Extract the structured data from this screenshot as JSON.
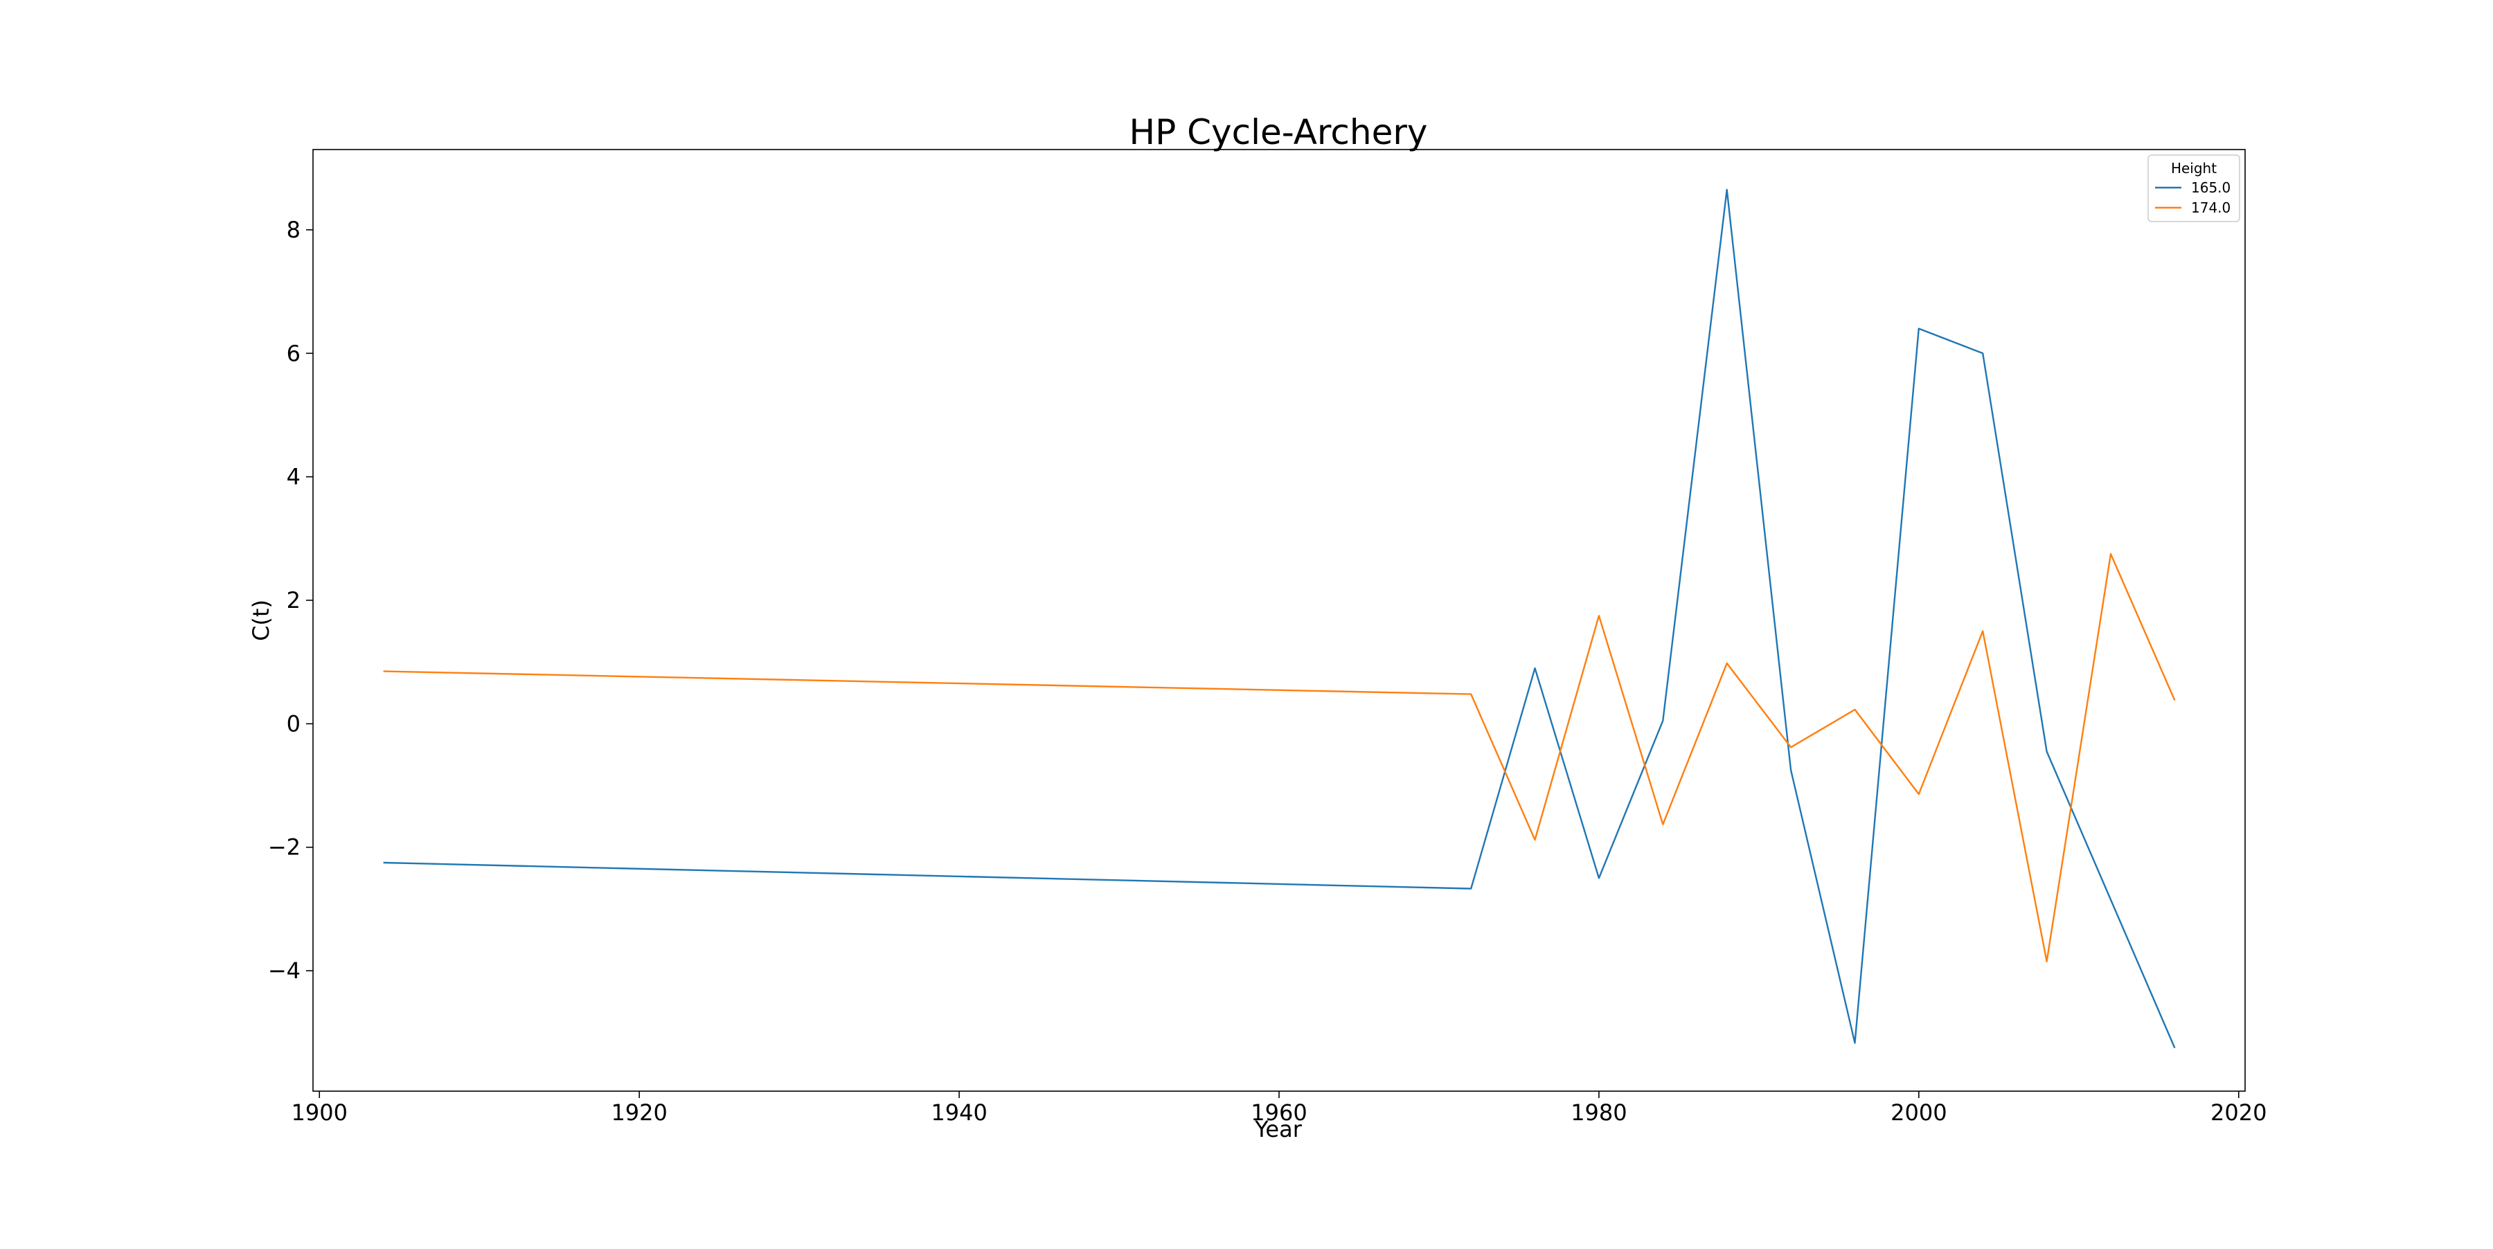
{
  "chart_data": {
    "type": "line",
    "title": "HP Cycle-Archery",
    "xlabel": "Year",
    "ylabel": "C(t)",
    "xlim": [
      1899.6,
      2020.4
    ],
    "ylim": [
      -5.95,
      9.3
    ],
    "xticks": [
      1900,
      1920,
      1940,
      1960,
      1980,
      2000,
      2020
    ],
    "yticks": [
      -4,
      -2,
      0,
      2,
      4,
      6,
      8
    ],
    "ytick_labels": [
      "−4",
      "−2",
      "0",
      "2",
      "4",
      "6",
      "8"
    ],
    "grid": false,
    "legend": {
      "title": "Height",
      "position": "top-right"
    },
    "series": [
      {
        "name": "165.0",
        "color": "#1f77b4",
        "x": [
          1904,
          1972,
          1976,
          1980,
          1984,
          1988,
          1992,
          1996,
          2000,
          2004,
          2008,
          2012,
          2016
        ],
        "y": [
          -2.25,
          -2.67,
          0.9,
          -2.5,
          0.05,
          8.65,
          -0.75,
          -5.17,
          6.4,
          6.0,
          -0.45,
          -2.85,
          -5.25
        ]
      },
      {
        "name": "174.0",
        "color": "#ff7f0e",
        "x": [
          1904,
          1972,
          1976,
          1980,
          1984,
          1988,
          1992,
          1996,
          2000,
          2004,
          2008,
          2012,
          2016
        ],
        "y": [
          0.85,
          0.48,
          -1.88,
          1.75,
          -1.63,
          0.98,
          -0.38,
          0.23,
          -1.14,
          1.5,
          -3.85,
          2.75,
          0.38
        ]
      }
    ]
  }
}
